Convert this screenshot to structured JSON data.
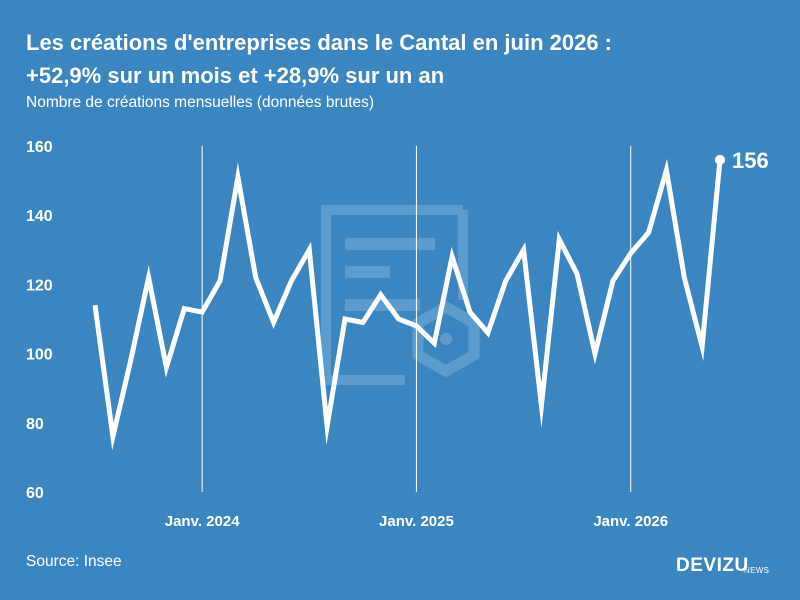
{
  "header": {
    "title_line1": "Les créations d'entreprises dans le Cantal en juin 2026 :",
    "title_line2": "+52,9% sur un mois et +28,9% sur un an",
    "subtitle": "Nombre de créations mensuelles (données brutes)"
  },
  "footer": {
    "source": "Source: Insee",
    "brand": "DEVIZU",
    "brand_sub": "NEWS"
  },
  "colors": {
    "background": "#3b86c0",
    "line": "#ffffff",
    "watermark": "#6da6d3"
  },
  "chart_data": {
    "type": "line",
    "title": "Les créations d'entreprises dans le Cantal en juin 2026 : +52,9% sur un mois et +28,9% sur un an",
    "subtitle": "Nombre de créations mensuelles (données brutes)",
    "y_ticks": [
      "160",
      "140",
      "120",
      "100",
      "80",
      "60"
    ],
    "ylim": [
      60,
      160
    ],
    "x_ticks": [
      "Janv. 2024",
      "Janv. 2025",
      "Janv. 2026"
    ],
    "xlim": [
      "2023-07",
      "2026-06"
    ],
    "grid": {
      "x": true,
      "y": false
    },
    "end_label": "156",
    "series": [
      {
        "x": [
          "2023-07",
          "2023-08",
          "2023-09",
          "2023-10",
          "2023-11",
          "2023-12",
          "2024-01",
          "2024-02",
          "2024-03",
          "2024-04",
          "2024-05",
          "2024-06",
          "2024-07",
          "2024-08",
          "2024-09",
          "2024-10",
          "2024-11",
          "2024-12",
          "2025-01",
          "2025-02",
          "2025-03",
          "2025-04",
          "2025-05",
          "2025-06",
          "2025-07",
          "2025-08",
          "2025-09",
          "2025-10",
          "2025-11",
          "2025-12",
          "2026-01",
          "2026-02",
          "2026-03",
          "2026-04",
          "2026-05",
          "2026-06"
        ],
        "values": [
          114,
          76,
          98,
          122,
          96,
          113,
          112,
          121,
          151,
          122,
          109,
          121,
          130,
          79,
          110,
          109,
          117,
          110,
          108,
          103,
          128,
          112,
          106,
          121,
          130,
          85,
          133,
          123,
          100,
          121,
          129,
          135,
          153,
          122,
          102,
          156
        ]
      }
    ]
  }
}
